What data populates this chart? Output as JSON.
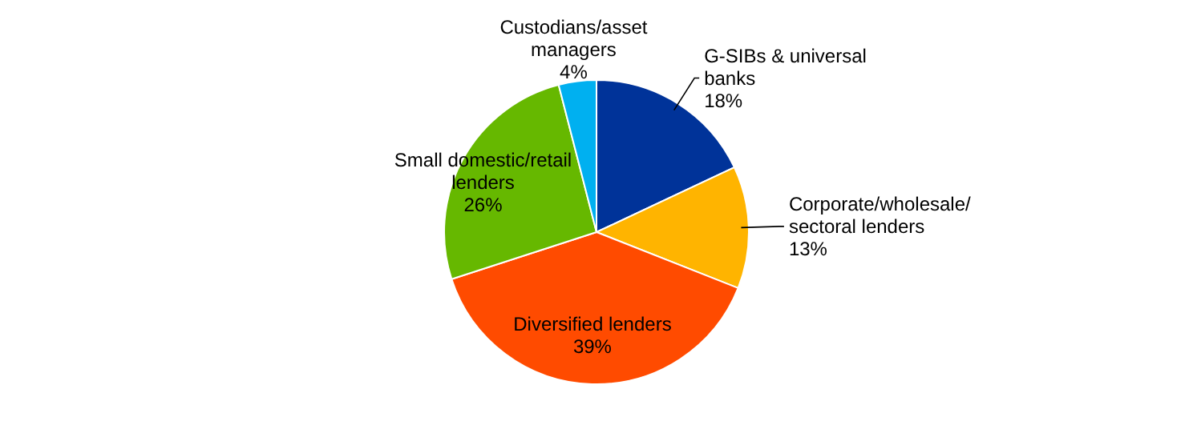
{
  "chart_data": {
    "type": "pie",
    "categories": [
      "G-SIBs & universal banks",
      "Corporate/wholesale/sectoral lenders",
      "Diversified lenders",
      "Small domestic/retail lenders",
      "Custodians/asset managers"
    ],
    "values": [
      18,
      13,
      39,
      26,
      4
    ],
    "value_labels": [
      "18%",
      "13%",
      "39%",
      "26%",
      "4%"
    ],
    "colors": [
      "#003399",
      "#ffb400",
      "#ff4b00",
      "#66b800",
      "#00b0f0"
    ],
    "legend": false
  }
}
